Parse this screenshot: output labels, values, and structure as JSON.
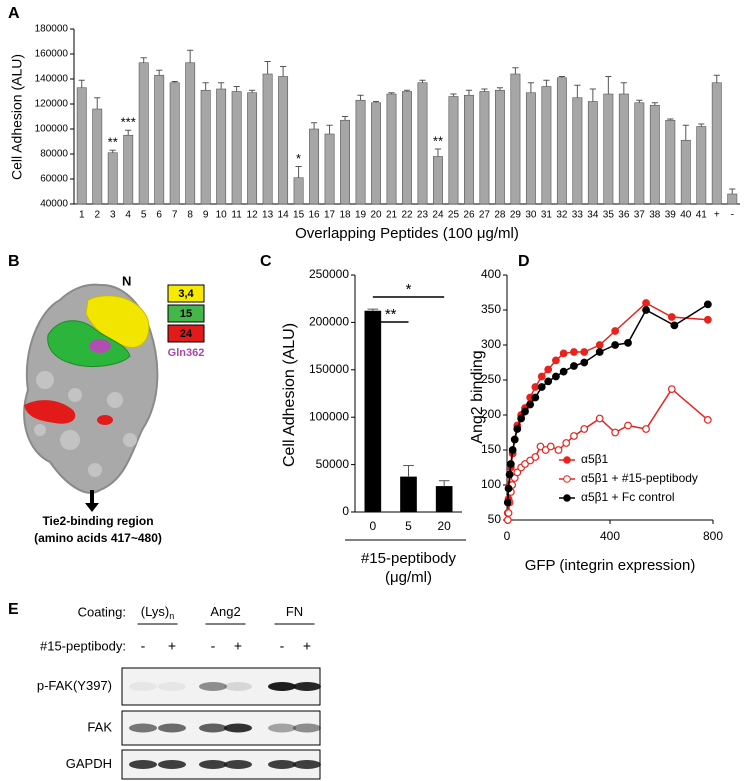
{
  "chart_data": [
    {
      "panel": "A",
      "type": "bar",
      "ylabel": "Cell Adhesion (ALU)",
      "xlabel": "Overlapping Peptides (100 μg/ml)",
      "categories": [
        "1",
        "2",
        "3",
        "4",
        "5",
        "6",
        "7",
        "8",
        "9",
        "10",
        "11",
        "12",
        "13",
        "14",
        "15",
        "16",
        "17",
        "18",
        "19",
        "20",
        "21",
        "22",
        "23",
        "24",
        "25",
        "26",
        "27",
        "28",
        "29",
        "30",
        "31",
        "32",
        "33",
        "34",
        "35",
        "36",
        "37",
        "38",
        "39",
        "40",
        "41",
        "+",
        "-"
      ],
      "values": [
        133000,
        116000,
        81000,
        95000,
        153000,
        143000,
        137000,
        153000,
        131000,
        132000,
        130000,
        129000,
        144000,
        142000,
        61000,
        100000,
        96000,
        107000,
        123000,
        121000,
        128000,
        130000,
        137000,
        78000,
        126000,
        127000,
        130000,
        131000,
        144000,
        129000,
        134000,
        141000,
        125000,
        122000,
        128000,
        128000,
        121000,
        119000,
        107000,
        91000,
        102000,
        137000,
        48000
      ],
      "errors": [
        6000,
        9000,
        2000,
        4000,
        4000,
        4000,
        1000,
        10000,
        6000,
        5000,
        4000,
        2000,
        10000,
        8000,
        9000,
        5000,
        7000,
        3000,
        4000,
        1000,
        1000,
        1000,
        2000,
        6000,
        2000,
        4000,
        2000,
        2000,
        5000,
        8000,
        5000,
        1000,
        10000,
        10000,
        14000,
        9000,
        2000,
        2000,
        1000,
        12000,
        2000,
        6000,
        4000
      ],
      "color": "#a6a6a6",
      "ylim": [
        40000,
        180000
      ],
      "yticks": [
        40000,
        60000,
        80000,
        100000,
        120000,
        140000,
        160000,
        180000
      ],
      "annotations": [
        {
          "text": "**",
          "category": "3"
        },
        {
          "text": "***",
          "category": "4"
        },
        {
          "text": "*",
          "category": "15"
        },
        {
          "text": "**",
          "category": "24"
        }
      ]
    },
    {
      "panel": "C",
      "type": "bar",
      "ylabel": "Cell Adhesion (ALU)",
      "xlabel": [
        "#15-peptibody",
        "(μg/ml)"
      ],
      "categories": [
        "0",
        "5",
        "20"
      ],
      "values": [
        212000,
        37000,
        27000
      ],
      "errors": [
        2000,
        12000,
        6000
      ],
      "color": "#000000",
      "ylim": [
        0,
        250000
      ],
      "yticks": [
        0,
        50000,
        100000,
        150000,
        200000,
        250000
      ],
      "brackets": [
        {
          "text": "**",
          "from": "0",
          "to": "5"
        },
        {
          "text": "*",
          "from": "0",
          "to": "20"
        }
      ]
    },
    {
      "panel": "D",
      "type": "scatter",
      "ylabel": "Ang2 binding",
      "xlabel": "GFP (integrin expression)",
      "xlim": [
        0,
        800
      ],
      "xticks": [
        0,
        400,
        800
      ],
      "ylim": [
        50,
        400
      ],
      "yticks": [
        50,
        100,
        150,
        200,
        250,
        300,
        350,
        400
      ],
      "legend": "bottom-right",
      "series": [
        {
          "name": "α5β1",
          "color": "#e8221d",
          "filled": true,
          "x": [
            3,
            6,
            10,
            15,
            22,
            30,
            40,
            55,
            70,
            90,
            110,
            135,
            160,
            190,
            220,
            260,
            300,
            360,
            420,
            540,
            640,
            780
          ],
          "values": [
            60,
            80,
            100,
            125,
            145,
            165,
            185,
            200,
            210,
            225,
            240,
            255,
            265,
            278,
            288,
            290,
            290,
            300,
            320,
            360,
            340,
            336
          ]
        },
        {
          "name": "α5β1 + #15-peptibody",
          "color": "#e8221d",
          "filled": false,
          "x": [
            3,
            6,
            10,
            15,
            20,
            30,
            40,
            55,
            70,
            90,
            110,
            130,
            150,
            170,
            200,
            230,
            260,
            300,
            360,
            420,
            470,
            540,
            640,
            780
          ],
          "values": [
            50,
            60,
            75,
            90,
            100,
            110,
            118,
            125,
            130,
            135,
            140,
            155,
            150,
            155,
            150,
            160,
            170,
            180,
            195,
            175,
            185,
            180,
            237,
            193
          ]
        },
        {
          "name": "α5β1 + Fc control",
          "color": "#000000",
          "filled": true,
          "x": [
            3,
            6,
            10,
            15,
            22,
            30,
            40,
            55,
            70,
            90,
            110,
            135,
            160,
            190,
            220,
            260,
            300,
            360,
            420,
            470,
            540,
            650,
            780
          ],
          "values": [
            75,
            95,
            115,
            130,
            150,
            165,
            180,
            195,
            205,
            215,
            225,
            240,
            248,
            255,
            262,
            270,
            275,
            290,
            300,
            303,
            350,
            328,
            358
          ]
        }
      ]
    }
  ],
  "structure": {
    "panel": "B",
    "n_terminus": "N",
    "legend": [
      "3,4",
      "15",
      "24"
    ],
    "residue": "Gln362",
    "region": "Tie2-binding region",
    "region_detail": "(amino acids 417~480)"
  },
  "western_blot": {
    "panel": "E",
    "coating_label": "Coating:",
    "coatings": [
      {
        "text": "(Lys)",
        "sub": "n"
      },
      {
        "text": "Ang2"
      },
      {
        "text": "FN"
      }
    ],
    "treatment_label": "#15-peptibody:",
    "treatments": [
      "-",
      "+",
      "-",
      "+",
      "-",
      "+"
    ],
    "rows": [
      "p-FAK(Y397)",
      "FAK",
      "GAPDH"
    ]
  }
}
